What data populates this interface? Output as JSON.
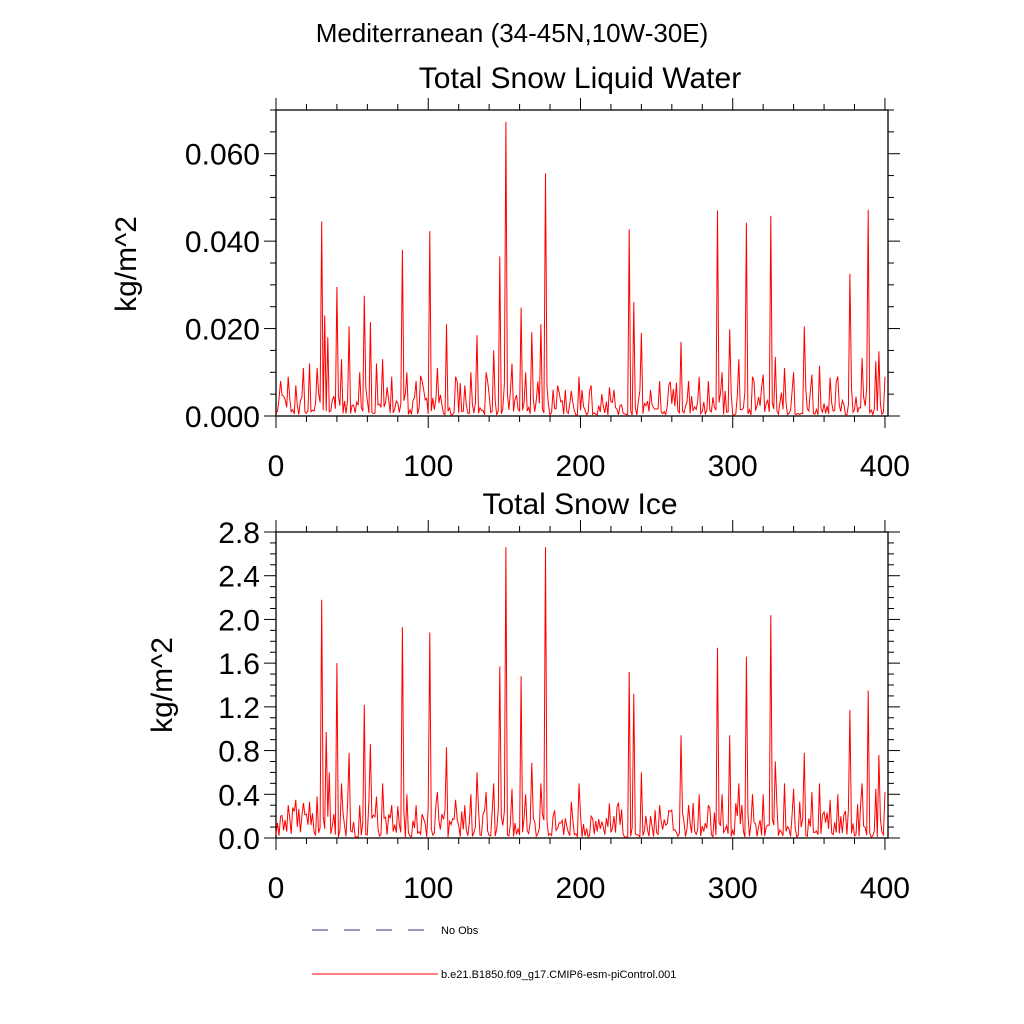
{
  "page_title": "Mediterranean (34-45N,10W-30E)",
  "legend": {
    "no_obs_label": "No Obs",
    "model_label": "b.e21.B1850.f09_g17.CMIP6-esm-piControl.001",
    "no_obs_color": "#2a3a8a",
    "model_color": "#ff0000"
  },
  "chart_data": [
    {
      "type": "line",
      "title": "Total Snow Liquid Water",
      "xlabel": "",
      "ylabel": "kg/m^2",
      "xlim": [
        0,
        402
      ],
      "ylim": [
        0,
        0.07
      ],
      "xticks": [
        0,
        100,
        200,
        300,
        400
      ],
      "xtick_labels": [
        "0",
        "100",
        "200",
        "300",
        "400"
      ],
      "yticks": [
        0,
        0.02,
        0.04,
        0.06
      ],
      "ytick_labels": [
        "0.000",
        "0.020",
        "0.040",
        "0.060"
      ],
      "series": [
        {
          "name": "b.e21.B1850.f09_g17.CMIP6-esm-piControl.001",
          "color": "#ff0000",
          "peaks": [
            [
              3,
              0.008
            ],
            [
              8,
              0.009
            ],
            [
              13,
              0.007
            ],
            [
              18,
              0.011
            ],
            [
              22,
              0.012
            ],
            [
              27,
              0.011
            ],
            [
              30,
              0.0445
            ],
            [
              32,
              0.023
            ],
            [
              34,
              0.018
            ],
            [
              40,
              0.0295
            ],
            [
              43,
              0.013
            ],
            [
              48,
              0.0205
            ],
            [
              55,
              0.01
            ],
            [
              58,
              0.0275
            ],
            [
              62,
              0.0215
            ],
            [
              66,
              0.012
            ],
            [
              70,
              0.013
            ],
            [
              76,
              0.009
            ],
            [
              83,
              0.038
            ],
            [
              86,
              0.01
            ],
            [
              92,
              0.008
            ],
            [
              101,
              0.0423
            ],
            [
              106,
              0.011
            ],
            [
              112,
              0.021
            ],
            [
              118,
              0.009
            ],
            [
              124,
              0.007
            ],
            [
              128,
              0.01
            ],
            [
              132,
              0.0185
            ],
            [
              138,
              0.01
            ],
            [
              143,
              0.015
            ],
            [
              147,
              0.0365
            ],
            [
              151,
              0.0673
            ],
            [
              155,
              0.012
            ],
            [
              161,
              0.0248
            ],
            [
              164,
              0.01
            ],
            [
              168,
              0.0192
            ],
            [
              174,
              0.021
            ],
            [
              177,
              0.0555
            ],
            [
              182,
              0.006
            ],
            [
              190,
              0.006
            ],
            [
              199,
              0.009
            ],
            [
              207,
              0.007
            ],
            [
              214,
              0.005
            ],
            [
              222,
              0.006
            ],
            [
              232,
              0.0427
            ],
            [
              235,
              0.026
            ],
            [
              240,
              0.019
            ],
            [
              246,
              0.006
            ],
            [
              252,
              0.008
            ],
            [
              258,
              0.007
            ],
            [
              266,
              0.017
            ],
            [
              271,
              0.008
            ],
            [
              278,
              0.009
            ],
            [
              284,
              0.008
            ],
            [
              290,
              0.047
            ],
            [
              293,
              0.01
            ],
            [
              298,
              0.0198
            ],
            [
              304,
              0.013
            ],
            [
              309,
              0.0442
            ],
            [
              313,
              0.009
            ],
            [
              320,
              0.0095
            ],
            [
              325,
              0.0458
            ],
            [
              328,
              0.0135
            ],
            [
              334,
              0.011
            ],
            [
              340,
              0.01
            ],
            [
              347,
              0.0205
            ],
            [
              352,
              0.0095
            ],
            [
              357,
              0.0115
            ],
            [
              364,
              0.0088
            ],
            [
              369,
              0.009
            ],
            [
              377,
              0.0325
            ],
            [
              385,
              0.0133
            ],
            [
              389,
              0.0472
            ],
            [
              394,
              0.0125
            ],
            [
              396,
              0.0148
            ],
            [
              400,
              0.009
            ]
          ]
        }
      ]
    },
    {
      "type": "line",
      "title": "Total Snow Ice",
      "xlabel": "",
      "ylabel": "kg/m^2",
      "xlim": [
        0,
        402
      ],
      "ylim": [
        0,
        2.8
      ],
      "xticks": [
        0,
        100,
        200,
        300,
        400
      ],
      "xtick_labels": [
        "0",
        "100",
        "200",
        "300",
        "400"
      ],
      "yticks": [
        0,
        0.4,
        0.8,
        1.2,
        1.6,
        2.0,
        2.4,
        2.8
      ],
      "ytick_labels": [
        "0.0",
        "0.4",
        "0.8",
        "1.2",
        "1.6",
        "2.0",
        "2.4",
        "2.8"
      ],
      "series": [
        {
          "name": "b.e21.B1850.f09_g17.CMIP6-esm-piControl.001",
          "color": "#ff0000",
          "peaks": [
            [
              3,
              0.2
            ],
            [
              8,
              0.3
            ],
            [
              13,
              0.35
            ],
            [
              18,
              0.32
            ],
            [
              22,
              0.33
            ],
            [
              27,
              0.38
            ],
            [
              30,
              2.18
            ],
            [
              33,
              0.97
            ],
            [
              35,
              0.6
            ],
            [
              40,
              1.6
            ],
            [
              43,
              0.5
            ],
            [
              48,
              0.78
            ],
            [
              55,
              0.3
            ],
            [
              58,
              1.22
            ],
            [
              62,
              0.86
            ],
            [
              66,
              0.38
            ],
            [
              70,
              0.5
            ],
            [
              76,
              0.3
            ],
            [
              83,
              1.93
            ],
            [
              86,
              0.4
            ],
            [
              92,
              0.3
            ],
            [
              101,
              1.88
            ],
            [
              106,
              0.42
            ],
            [
              112,
              0.83
            ],
            [
              118,
              0.35
            ],
            [
              124,
              0.3
            ],
            [
              128,
              0.4
            ],
            [
              132,
              0.6
            ],
            [
              138,
              0.42
            ],
            [
              143,
              0.5
            ],
            [
              147,
              1.57
            ],
            [
              151,
              2.66
            ],
            [
              155,
              0.45
            ],
            [
              161,
              1.48
            ],
            [
              164,
              0.4
            ],
            [
              168,
              0.69
            ],
            [
              174,
              0.5
            ],
            [
              177,
              2.66
            ],
            [
              182,
              0.2
            ],
            [
              190,
              0.18
            ],
            [
              199,
              0.5
            ],
            [
              207,
              0.2
            ],
            [
              214,
              0.15
            ],
            [
              222,
              0.2
            ],
            [
              232,
              1.52
            ],
            [
              235,
              1.32
            ],
            [
              240,
              0.6
            ],
            [
              246,
              0.2
            ],
            [
              252,
              0.3
            ],
            [
              258,
              0.25
            ],
            [
              266,
              0.94
            ],
            [
              271,
              0.3
            ],
            [
              278,
              0.4
            ],
            [
              284,
              0.3
            ],
            [
              290,
              1.74
            ],
            [
              293,
              0.4
            ],
            [
              298,
              0.94
            ],
            [
              304,
              0.5
            ],
            [
              309,
              1.66
            ],
            [
              313,
              0.4
            ],
            [
              320,
              0.4
            ],
            [
              325,
              2.04
            ],
            [
              328,
              0.7
            ],
            [
              334,
              0.5
            ],
            [
              340,
              0.45
            ],
            [
              347,
              0.78
            ],
            [
              352,
              0.42
            ],
            [
              357,
              0.5
            ],
            [
              364,
              0.35
            ],
            [
              369,
              0.4
            ],
            [
              377,
              1.17
            ],
            [
              385,
              0.5
            ],
            [
              389,
              1.35
            ],
            [
              394,
              0.45
            ],
            [
              396,
              0.76
            ],
            [
              400,
              0.42
            ]
          ]
        }
      ]
    }
  ]
}
